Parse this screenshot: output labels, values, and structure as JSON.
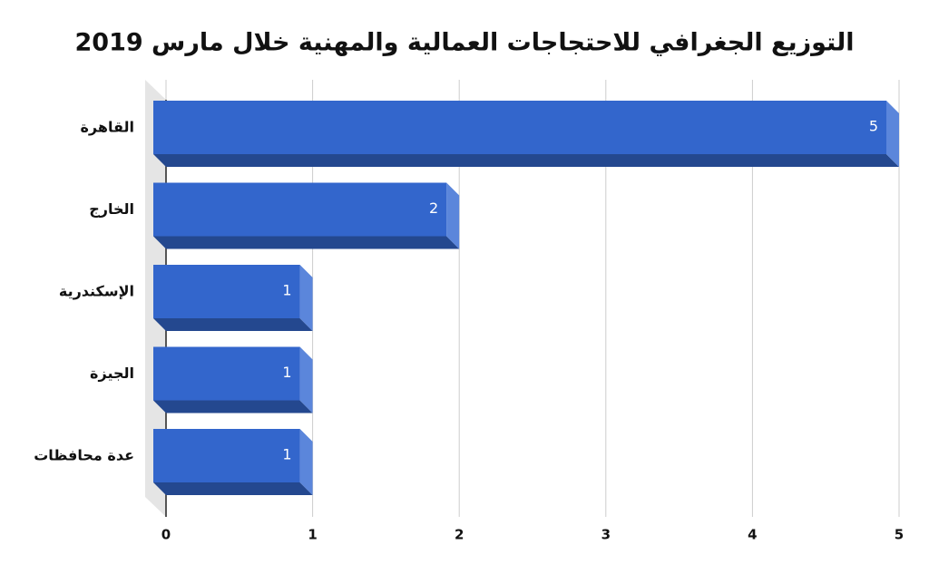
{
  "chart_data": {
    "type": "bar",
    "orientation": "horizontal",
    "title": "التوزيع الجغرافي للاحتجاجات العمالية والمهنية خلال مارس 2019",
    "categories": [
      "القاهرة",
      "الخارج",
      "الإسكندرية",
      "الجيزة",
      "عدة محافظات"
    ],
    "values": [
      5,
      2,
      1,
      1,
      1
    ],
    "color": "#3366cc",
    "xlim": [
      0,
      5
    ],
    "xticks": [
      0,
      1,
      2,
      3,
      4,
      5
    ],
    "grid": true
  }
}
